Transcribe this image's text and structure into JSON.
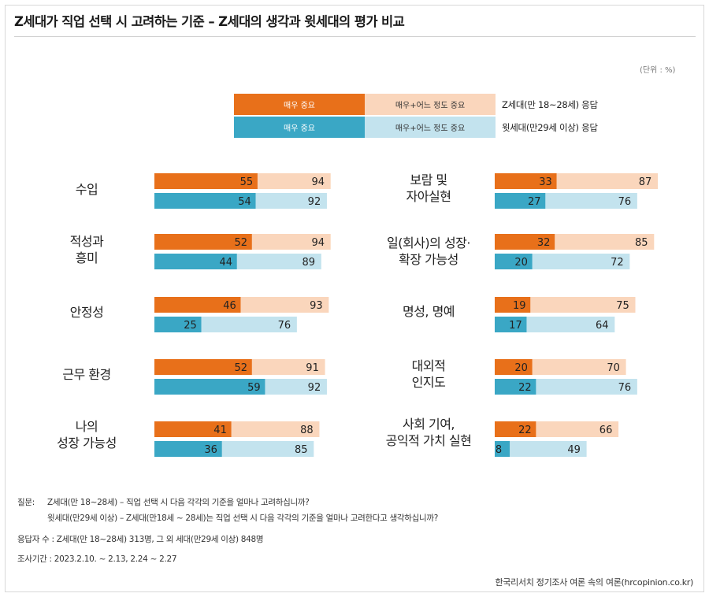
{
  "title": "Z세대가 직업 선택 시 고려하는 기준 –  Z세대의 생각과 윗세대의 평가 비교",
  "unit": "(단위 : %)",
  "colors": {
    "z_strong": "#e8701a",
    "z_total": "#fad6bc",
    "older_strong": "#3aa7c5",
    "older_total": "#c3e3ee"
  },
  "legend": {
    "z_strong_label": "매우 중요",
    "z_total_label": "매우+어느 정도 중요",
    "z_group": "Z세대(만 18~28세) 응답",
    "older_strong_label": "매우 중요",
    "older_total_label": "매우+어느 정도 중요",
    "older_group": "윗세대(만29세 이상) 응답"
  },
  "chart_data": {
    "type": "bar",
    "orientation": "horizontal",
    "xlim": [
      0,
      100
    ],
    "series_names": [
      "Z세대 매우 중요",
      "Z세대 매우+어느 정도 중요",
      "윗세대 매우 중요",
      "윗세대 매우+어느 정도 중요"
    ],
    "categories": [
      {
        "lines": [
          "수입"
        ],
        "z": [
          55,
          94
        ],
        "older": [
          54,
          92
        ]
      },
      {
        "lines": [
          "적성과",
          "흥미"
        ],
        "z": [
          52,
          94
        ],
        "older": [
          44,
          89
        ]
      },
      {
        "lines": [
          "안정성"
        ],
        "z": [
          46,
          93
        ],
        "older": [
          25,
          76
        ]
      },
      {
        "lines": [
          "근무 환경"
        ],
        "z": [
          52,
          91
        ],
        "older": [
          59,
          92
        ]
      },
      {
        "lines": [
          "나의",
          "성장 가능성"
        ],
        "z": [
          41,
          88
        ],
        "older": [
          36,
          85
        ]
      },
      {
        "lines": [
          "보람 및",
          "자아실현"
        ],
        "z": [
          33,
          87
        ],
        "older": [
          27,
          76
        ]
      },
      {
        "lines": [
          "일(회사)의 성장·",
          "확장 가능성"
        ],
        "z": [
          32,
          85
        ],
        "older": [
          20,
          72
        ]
      },
      {
        "lines": [
          "명성, 명예"
        ],
        "z": [
          19,
          75
        ],
        "older": [
          17,
          64
        ]
      },
      {
        "lines": [
          "대외적",
          "인지도"
        ],
        "z": [
          20,
          70
        ],
        "older": [
          22,
          76
        ]
      },
      {
        "lines": [
          "사회 기여,",
          "공익적 가치 실현"
        ],
        "z": [
          22,
          66
        ],
        "older": [
          8,
          49
        ]
      }
    ]
  },
  "notes": {
    "question_label": "질문:",
    "question_z": "Z세대(만 18~28세) – 직업 선택 시 다음 각각의 기준을 얼마나 고려하십니까?",
    "question_older": "윗세대(만29세 이상) – Z세대(만18세 ~ 28세)는 직업 선택 시 다음 각각의 기준을 얼마나 고려한다고 생각하십니까?",
    "respondents": "응답자 수 : Z세대(만 18~28세) 313명, 그 외 세대(만29세 이상) 848명",
    "period": "조사기간 : 2023.2.10. ~ 2.13, 2.24 ~ 2.27"
  },
  "source": "한국리서치 정기조사 여론 속의 여론(hrcopinion.co.kr)"
}
